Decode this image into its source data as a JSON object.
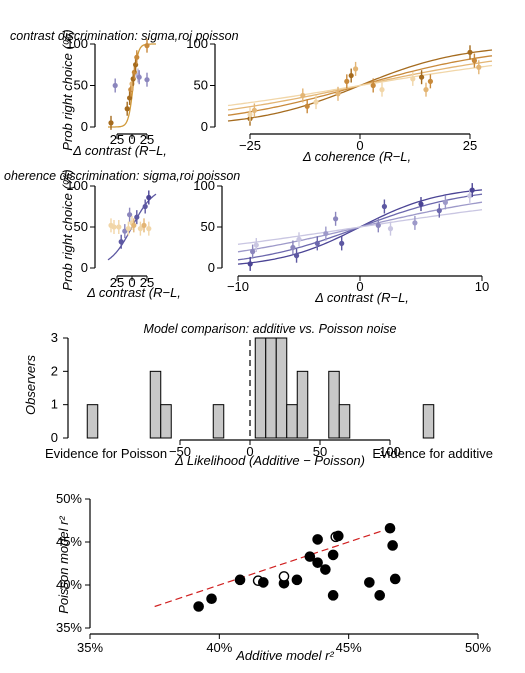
{
  "chart_data": [
    {
      "id": "contrast_row",
      "title": "contrast discrimination: sigma,roi poisson",
      "ylabel": "Prob right choice (%)",
      "panels": [
        {
          "type": "scatter",
          "xlabel": "Δ contrast (R−L,",
          "xticks": [
            "25",
            "0",
            "25"
          ],
          "xtick_values": [
            -25,
            0,
            25
          ],
          "xlim": [
            -40,
            40
          ],
          "yticks": [
            "0",
            "50",
            "100"
          ],
          "ylim": [
            0,
            100
          ],
          "fit": {
            "center": 2,
            "slope": 0.25,
            "color": "#d19a3a"
          },
          "points": [
            {
              "x": -35,
              "y": 5,
              "c": "#a56b1e"
            },
            {
              "x": -28,
              "y": 50,
              "c": "#8b86bd"
            },
            {
              "x": -8,
              "y": 22,
              "c": "#a56b1e"
            },
            {
              "x": -4,
              "y": 35,
              "c": "#a56b1e"
            },
            {
              "x": -2,
              "y": 45,
              "c": "#c8893a"
            },
            {
              "x": 0,
              "y": 52,
              "c": "#e3b574"
            },
            {
              "x": 2,
              "y": 58,
              "c": "#a56b1e"
            },
            {
              "x": 4,
              "y": 66,
              "c": "#c8893a"
            },
            {
              "x": 6,
              "y": 75,
              "c": "#a56b1e"
            },
            {
              "x": 8,
              "y": 84,
              "c": "#c8893a"
            },
            {
              "x": 10,
              "y": 62,
              "c": "#b9b6d8"
            },
            {
              "x": 12,
              "y": 60,
              "c": "#8b86bd"
            },
            {
              "x": 25,
              "y": 98,
              "c": "#c8893a"
            },
            {
              "x": 25,
              "y": 57,
              "c": "#8b86bd"
            }
          ]
        },
        {
          "type": "scatter",
          "xlabel": "Δ coherence (R−L,",
          "xticks": [
            "−25",
            "0",
            "25"
          ],
          "xtick_values": [
            -25,
            0,
            25
          ],
          "xlim": [
            -30,
            30
          ],
          "yticks": [
            "0",
            "50",
            "100"
          ],
          "ylim": [
            0,
            100
          ],
          "fits": [
            {
              "center": 0,
              "slope": 0.085,
              "color": "#a56b1e"
            },
            {
              "center": 0,
              "slope": 0.06,
              "color": "#c8893a"
            },
            {
              "center": 0,
              "slope": 0.045,
              "color": "#e3b574"
            },
            {
              "center": 0,
              "slope": 0.035,
              "color": "#f1d6a8"
            }
          ],
          "points": [
            {
              "x": -25,
              "y": 10,
              "c": "#a56b1e"
            },
            {
              "x": -24,
              "y": 20,
              "c": "#e3b574"
            },
            {
              "x": -25,
              "y": 15,
              "c": "#f1d6a8"
            },
            {
              "x": -12,
              "y": 25,
              "c": "#c8893a"
            },
            {
              "x": -13,
              "y": 38,
              "c": "#e3b574"
            },
            {
              "x": -10,
              "y": 30,
              "c": "#f1d6a8"
            },
            {
              "x": -5,
              "y": 40,
              "c": "#e3b574"
            },
            {
              "x": -3,
              "y": 55,
              "c": "#c8893a"
            },
            {
              "x": -2,
              "y": 62,
              "c": "#a56b1e"
            },
            {
              "x": -1,
              "y": 70,
              "c": "#e3b574"
            },
            {
              "x": 3,
              "y": 50,
              "c": "#c8893a"
            },
            {
              "x": 5,
              "y": 45,
              "c": "#f1d6a8"
            },
            {
              "x": 12,
              "y": 58,
              "c": "#f1d6a8"
            },
            {
              "x": 14,
              "y": 60,
              "c": "#a56b1e"
            },
            {
              "x": 15,
              "y": 45,
              "c": "#e3b574"
            },
            {
              "x": 16,
              "y": 55,
              "c": "#c8893a"
            },
            {
              "x": 25,
              "y": 90,
              "c": "#a56b1e"
            },
            {
              "x": 26,
              "y": 80,
              "c": "#c8893a"
            },
            {
              "x": 27,
              "y": 72,
              "c": "#e3b574"
            }
          ]
        }
      ]
    },
    {
      "id": "coherence_row",
      "title": "oherence discrimination: sigma,roi poisson",
      "ylabel": "Prob right choice (%)",
      "panels": [
        {
          "type": "scatter",
          "xlabel": "Δ contrast (R−L,",
          "xticks": [
            "25",
            "0",
            "25"
          ],
          "xtick_values": [
            -25,
            0,
            25
          ],
          "xlim": [
            -40,
            40
          ],
          "yticks": [
            "0",
            "50",
            "100"
          ],
          "ylim": [
            0,
            100
          ],
          "fit": {
            "center": 0,
            "slope": 0.055,
            "color": "#5d58a2"
          },
          "points": [
            {
              "x": -35,
              "y": 52,
              "c": "#f1d6a8"
            },
            {
              "x": -30,
              "y": 50,
              "c": "#f1d6a8"
            },
            {
              "x": -22,
              "y": 50,
              "c": "#f1d6a8"
            },
            {
              "x": -18,
              "y": 32,
              "c": "#5d58a2"
            },
            {
              "x": -12,
              "y": 45,
              "c": "#8b86bd"
            },
            {
              "x": -6,
              "y": 48,
              "c": "#f1d6a8"
            },
            {
              "x": -4,
              "y": 65,
              "c": "#8b86bd"
            },
            {
              "x": 0,
              "y": 55,
              "c": "#f1d6a8"
            },
            {
              "x": 3,
              "y": 52,
              "c": "#e3b574"
            },
            {
              "x": 8,
              "y": 62,
              "c": "#5d58a2"
            },
            {
              "x": 14,
              "y": 48,
              "c": "#f1d6a8"
            },
            {
              "x": 20,
              "y": 52,
              "c": "#e3b574"
            },
            {
              "x": 22,
              "y": 75,
              "c": "#5d58a2"
            },
            {
              "x": 28,
              "y": 48,
              "c": "#f1d6a8"
            },
            {
              "x": 28,
              "y": 86,
              "c": "#4b4495"
            }
          ]
        },
        {
          "type": "scatter",
          "xlabel": "Δ contrast (R−L,",
          "xticks": [
            "−10",
            "0",
            "10"
          ],
          "xtick_values": [
            -10,
            0,
            10
          ],
          "xlim": [
            -10,
            10
          ],
          "yticks": [
            "0",
            "50",
            "100"
          ],
          "ylim": [
            0,
            100
          ],
          "fits": [
            {
              "center": 0,
              "slope": 0.3,
              "color": "#4b4495"
            },
            {
              "center": 0,
              "slope": 0.22,
              "color": "#6c68ad"
            },
            {
              "center": 0,
              "slope": 0.14,
              "color": "#9d99c9"
            },
            {
              "center": 0,
              "slope": 0.09,
              "color": "#c9c6e2"
            }
          ],
          "points": [
            {
              "x": -9,
              "y": 5,
              "c": "#4b4495"
            },
            {
              "x": -8.8,
              "y": 20,
              "c": "#8b86bd"
            },
            {
              "x": -8.5,
              "y": 28,
              "c": "#c9c6e2"
            },
            {
              "x": -5.5,
              "y": 25,
              "c": "#8b86bd"
            },
            {
              "x": -5.2,
              "y": 15,
              "c": "#5d58a2"
            },
            {
              "x": -5,
              "y": 35,
              "c": "#c9c6e2"
            },
            {
              "x": -3.5,
              "y": 30,
              "c": "#6c68ad"
            },
            {
              "x": -2.8,
              "y": 42,
              "c": "#9d99c9"
            },
            {
              "x": -2,
              "y": 60,
              "c": "#8b86bd"
            },
            {
              "x": -1.5,
              "y": 30,
              "c": "#5d58a2"
            },
            {
              "x": 1.5,
              "y": 52,
              "c": "#8b86bd"
            },
            {
              "x": 2,
              "y": 75,
              "c": "#5d58a2"
            },
            {
              "x": 2.5,
              "y": 48,
              "c": "#c9c6e2"
            },
            {
              "x": 4.5,
              "y": 55,
              "c": "#9d99c9"
            },
            {
              "x": 5,
              "y": 78,
              "c": "#4b4495"
            },
            {
              "x": 6.5,
              "y": 70,
              "c": "#6c68ad"
            },
            {
              "x": 7,
              "y": 80,
              "c": "#9d99c9"
            },
            {
              "x": 9,
              "y": 88,
              "c": "#c9c6e2"
            },
            {
              "x": 9.2,
              "y": 95,
              "c": "#4b4495"
            }
          ]
        }
      ]
    },
    {
      "id": "model_comparison",
      "type": "bar",
      "title": "Model comparison: additive vs. Poisson noise",
      "xlabel": "Δ Likelihood (Additive − Poisson)",
      "ylabel": "Observers",
      "xticks": [
        "−50",
        "0",
        "50",
        "100"
      ],
      "xtick_values": [
        -50,
        0,
        50,
        100
      ],
      "xlim": [
        -120,
        150
      ],
      "yticks": [
        "0",
        "1",
        "2",
        "3"
      ],
      "ylim": [
        0,
        3
      ],
      "left_annotation": "Evidence for Poisson",
      "right_annotation": "Evidence for additive",
      "dashed_line_x": 0,
      "bin_width": 7.5,
      "bins": [
        {
          "x": -112.5,
          "count": 1
        },
        {
          "x": -67.5,
          "count": 2
        },
        {
          "x": -60,
          "count": 1
        },
        {
          "x": -22.5,
          "count": 1
        },
        {
          "x": 7.5,
          "count": 3
        },
        {
          "x": 15,
          "count": 3
        },
        {
          "x": 22.5,
          "count": 3
        },
        {
          "x": 30,
          "count": 1
        },
        {
          "x": 37.5,
          "count": 2
        },
        {
          "x": 60,
          "count": 2
        },
        {
          "x": 67.5,
          "count": 1
        },
        {
          "x": 127.5,
          "count": 1
        }
      ]
    },
    {
      "id": "r2_scatter",
      "type": "scatter",
      "xlabel": "Additive model r²",
      "ylabel": "Poisson model r²",
      "xticks": [
        "35%",
        "40%",
        "45%",
        "50%"
      ],
      "xtick_values": [
        35,
        40,
        45,
        50
      ],
      "xlim": [
        35,
        50
      ],
      "yticks": [
        "35%",
        "40%",
        "45%",
        "50%"
      ],
      "ytick_values": [
        35,
        40,
        45,
        50
      ],
      "ylim": [
        35,
        50
      ],
      "identity_line": {
        "x0": 37.5,
        "x1": 46.3,
        "color": "#d02020"
      },
      "points": [
        {
          "x": 39.2,
          "y": 37.5,
          "hollow": false
        },
        {
          "x": 39.7,
          "y": 38.4,
          "hollow": false
        },
        {
          "x": 40.8,
          "y": 40.6,
          "hollow": false
        },
        {
          "x": 41.5,
          "y": 40.5,
          "hollow": true
        },
        {
          "x": 41.7,
          "y": 40.3,
          "hollow": false
        },
        {
          "x": 42.5,
          "y": 40.2,
          "hollow": false
        },
        {
          "x": 42.5,
          "y": 41.0,
          "hollow": true
        },
        {
          "x": 43.0,
          "y": 40.6,
          "hollow": false
        },
        {
          "x": 43.5,
          "y": 43.3,
          "hollow": false
        },
        {
          "x": 43.8,
          "y": 45.3,
          "hollow": false
        },
        {
          "x": 43.8,
          "y": 42.6,
          "hollow": false
        },
        {
          "x": 44.1,
          "y": 41.8,
          "hollow": false
        },
        {
          "x": 44.4,
          "y": 43.5,
          "hollow": false
        },
        {
          "x": 44.5,
          "y": 45.6,
          "hollow": true
        },
        {
          "x": 44.4,
          "y": 38.8,
          "hollow": false
        },
        {
          "x": 44.6,
          "y": 45.7,
          "hollow": false
        },
        {
          "x": 45.8,
          "y": 40.3,
          "hollow": false
        },
        {
          "x": 46.2,
          "y": 38.8,
          "hollow": false
        },
        {
          "x": 46.6,
          "y": 46.6,
          "hollow": false
        },
        {
          "x": 46.7,
          "y": 44.6,
          "hollow": false
        },
        {
          "x": 46.8,
          "y": 40.7,
          "hollow": false
        }
      ]
    }
  ]
}
